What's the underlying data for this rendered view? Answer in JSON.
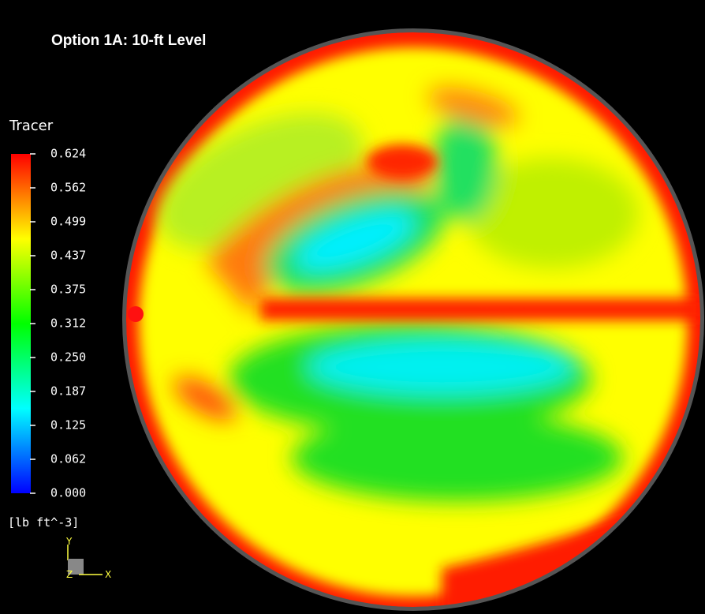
{
  "header": {
    "title": "Option 1A:  10-ft Level"
  },
  "legend": {
    "title": "Tracer",
    "labels": [
      "0.624",
      "0.562",
      "0.499",
      "0.437",
      "0.375",
      "0.312",
      "0.250",
      "0.187",
      "0.125",
      "0.062",
      "0.000"
    ],
    "units": "[lb  ft^-3]"
  },
  "axes": {
    "y": "Y",
    "z": "Z",
    "x": "X"
  }
}
